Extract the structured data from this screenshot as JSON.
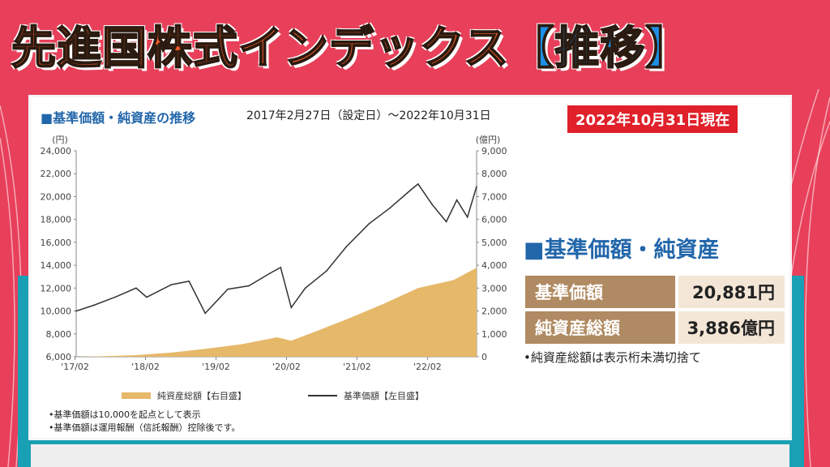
{
  "headline": {
    "main": "先進国株式インデックス",
    "bracketed": "【推移】"
  },
  "chart": {
    "title": "■基準価額・純資産の推移",
    "range": "2017年2月27日（設定日）〜2022年10月31日",
    "left_axis_unit": "(円)",
    "right_axis_unit": "(億円)",
    "left_ticks": [
      "6,000",
      "8,000",
      "10,000",
      "12,000",
      "14,000",
      "16,000",
      "18,000",
      "20,000",
      "22,000",
      "24,000"
    ],
    "right_ticks": [
      "0",
      "1,000",
      "2,000",
      "3,000",
      "4,000",
      "5,000",
      "6,000",
      "7,000",
      "8,000",
      "9,000"
    ],
    "x_ticks": [
      "'17/02",
      "'18/02",
      "'19/02",
      "'20/02",
      "'21/02",
      "'22/02"
    ],
    "legend_assets": "純資産総額【右目盛】",
    "legend_nav": "基準価額【左目盛】",
    "notes": [
      "•基準価額は10,000を起点として表示",
      "•基準価額は運用報酬（信託報酬）控除後です。"
    ]
  },
  "badge": "2022年10月31日現在",
  "summary": {
    "title": "■基準価額・純資産",
    "rows": [
      {
        "label": "基準価額",
        "value": "20,881円"
      },
      {
        "label": "純資産総額",
        "value": "3,886億円"
      }
    ],
    "note": "•純資産総額は表示桁未満切捨て"
  },
  "colors": {
    "assets_fill": "#e6b86a",
    "nav_line": "#333333",
    "background": "#e8405a",
    "teal": "#1aa0b4"
  },
  "chart_data": {
    "type": "line",
    "title": "基準価額・純資産の推移",
    "x_unit": "year",
    "x_range": [
      2017.15,
      2022.83
    ],
    "series": [
      {
        "name": "基準価額【左目盛】",
        "axis": "left",
        "ylim": [
          6000,
          24000
        ],
        "x": [
          2017.15,
          2017.4,
          2017.7,
          2018.0,
          2018.15,
          2018.5,
          2018.75,
          2018.98,
          2019.3,
          2019.6,
          2019.9,
          2020.05,
          2020.2,
          2020.4,
          2020.7,
          2020.98,
          2021.3,
          2021.6,
          2021.9,
          2022.0,
          2022.2,
          2022.4,
          2022.55,
          2022.7,
          2022.83
        ],
        "y": [
          10000,
          10500,
          11200,
          12000,
          11200,
          12300,
          12600,
          9800,
          11900,
          12200,
          13300,
          13800,
          10300,
          12000,
          13500,
          15600,
          17600,
          19000,
          20600,
          21100,
          19300,
          17800,
          19700,
          18200,
          20881
        ]
      },
      {
        "name": "純資産総額【右目盛】",
        "axis": "right",
        "ylim": [
          0,
          9000
        ],
        "x": [
          2017.15,
          2017.5,
          2018.0,
          2018.5,
          2019.0,
          2019.5,
          2020.0,
          2020.2,
          2020.5,
          2021.0,
          2021.5,
          2022.0,
          2022.5,
          2022.83
        ],
        "y": [
          0,
          20,
          70,
          180,
          350,
          550,
          850,
          700,
          1050,
          1650,
          2300,
          3000,
          3350,
          3886
        ]
      }
    ]
  }
}
